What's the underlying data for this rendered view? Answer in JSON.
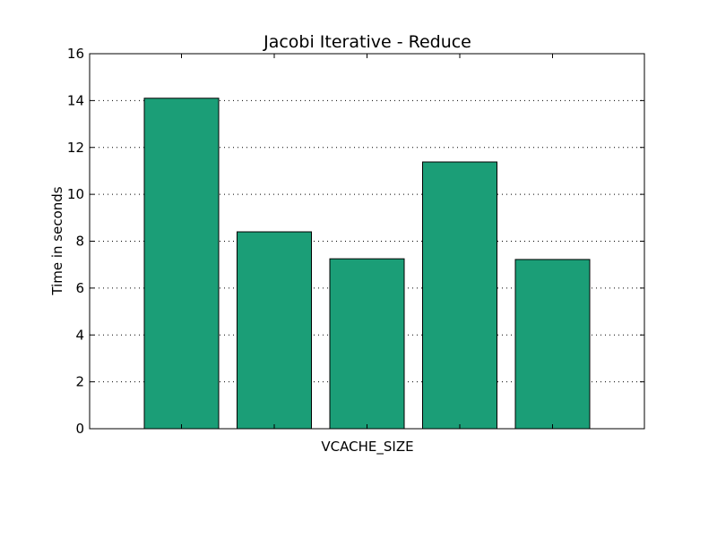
{
  "chart_data": {
    "type": "bar",
    "title": "Jacobi Iterative - Reduce",
    "xlabel": "VCACHE_SIZE",
    "ylabel": "Time in seconds",
    "categories": [
      "",
      "",
      "",
      "",
      ""
    ],
    "values": [
      14.1,
      8.4,
      7.25,
      11.38,
      7.22
    ],
    "ylim": [
      0,
      16
    ],
    "yticks": [
      0,
      2,
      4,
      6,
      8,
      10,
      12,
      14,
      16
    ],
    "grid": true,
    "legend": "none",
    "bar_color": "#1b9e77",
    "edge_color": "#000000"
  }
}
